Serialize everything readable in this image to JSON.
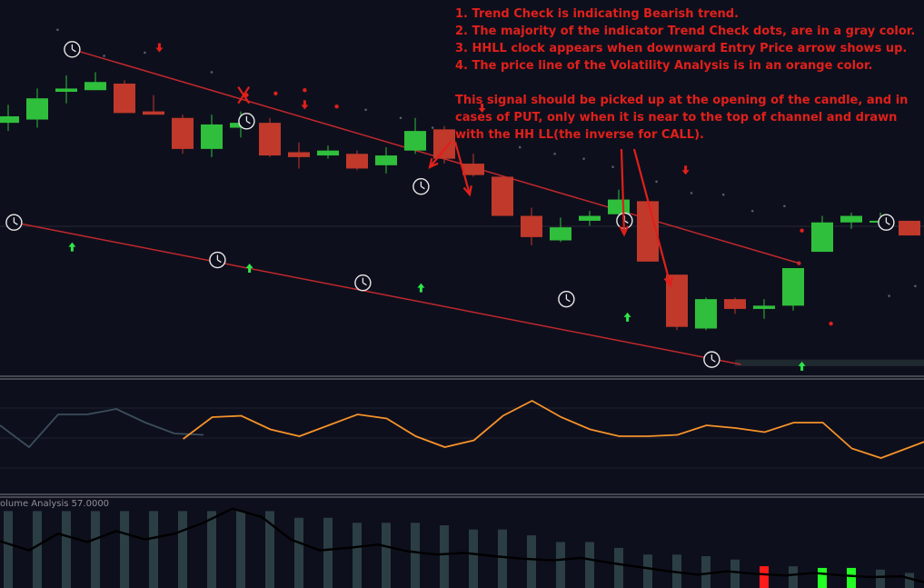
{
  "annotations": {
    "notes": [
      "1. Trend Check is indicating Bearish trend.",
      "2. The majority of the indicator Trend Check dots, are in a gray color.",
      "3. HHLL clock appears when downward Entry Price arrow shows up.",
      "4. The price line of the Volatility Analysis is in an orange color."
    ],
    "paragraph": [
      "This signal should be picked up at the opening of the candle, and in",
      "cases of PUT, only when it is near to the top of channel and drawn",
      "with the HH LL(the inverse for CALL)."
    ]
  },
  "volume_panel_label": "olume Analysis 57.0000",
  "colors": {
    "background": "#0e0f1c",
    "bull": "#2fbf3c",
    "bear": "#c0392b",
    "channel": "#c0282d",
    "annotation": "#e0201b",
    "volatility_line": "#f5922a",
    "volatility_line_early": "#3b4d5c",
    "volume_bar": "#2b3e44",
    "volume_line": "#000000",
    "trend_dot_gray": "#5a5d68",
    "trend_dot_red": "#e0201b",
    "arrow_up": "#2ee64a",
    "arrow_down": "#e0201b"
  },
  "chart_data": [
    {
      "type": "candlestick",
      "panel": "price",
      "candles": [
        {
          "o": 47,
          "c": 51,
          "h": 58,
          "l": 42
        },
        {
          "o": 49,
          "c": 62,
          "h": 68,
          "l": 44
        },
        {
          "o": 66,
          "c": 68,
          "h": 76,
          "l": 59
        },
        {
          "o": 67,
          "c": 72,
          "h": 78,
          "l": 67
        },
        {
          "o": 71,
          "c": 53,
          "h": 73,
          "l": 53
        },
        {
          "o": 54,
          "c": 52,
          "h": 64,
          "l": 52
        },
        {
          "o": 50,
          "c": 31,
          "h": 52,
          "l": 28
        },
        {
          "o": 31,
          "c": 46,
          "h": 52,
          "l": 26
        },
        {
          "o": 44,
          "c": 47,
          "h": 54,
          "l": 38
        },
        {
          "o": 47,
          "c": 27,
          "h": 50,
          "l": 26
        },
        {
          "o": 29,
          "c": 26,
          "h": 35,
          "l": 19
        },
        {
          "o": 27,
          "c": 30,
          "h": 33,
          "l": 25
        },
        {
          "o": 28,
          "c": 19,
          "h": 30,
          "l": 18
        },
        {
          "o": 21,
          "c": 27,
          "h": 32,
          "l": 16
        },
        {
          "o": 30,
          "c": 42,
          "h": 50,
          "l": 28
        },
        {
          "o": 43,
          "c": 25,
          "h": 45,
          "l": 22
        },
        {
          "o": 22,
          "c": 15,
          "h": 28,
          "l": 14
        },
        {
          "o": 14,
          "c": -10,
          "h": 14,
          "l": -10
        },
        {
          "o": -10,
          "c": -23,
          "h": -5,
          "l": -28
        },
        {
          "o": -25,
          "c": -17,
          "h": -11,
          "l": -26
        },
        {
          "o": -13,
          "c": -10,
          "h": -7,
          "l": -16
        },
        {
          "o": -9,
          "c": 0,
          "h": 6,
          "l": -10
        },
        {
          "o": -1,
          "c": -38,
          "h": 0,
          "l": -38
        },
        {
          "o": -46,
          "c": -78,
          "h": -46,
          "l": -80
        },
        {
          "o": -79,
          "c": -61,
          "h": -60,
          "l": -80
        },
        {
          "o": -61,
          "c": -67,
          "h": -60,
          "l": -70
        },
        {
          "o": -67,
          "c": -65,
          "h": -61,
          "l": -73
        },
        {
          "o": -65,
          "c": -42,
          "h": -42,
          "l": -68
        },
        {
          "o": -32,
          "c": -14,
          "h": -10,
          "l": -32
        },
        {
          "o": -14,
          "c": -10,
          "h": -8,
          "l": -18
        },
        {
          "o": -13,
          "c": -13,
          "h": -8,
          "l": -16
        },
        {
          "o": -13,
          "c": -22,
          "h": -13,
          "l": -22
        }
      ],
      "trend_check_dots": [
        {
          "i": 1.7,
          "v": 104,
          "c": "gray"
        },
        {
          "i": 3.3,
          "v": 88,
          "c": "gray"
        },
        {
          "i": 4.7,
          "v": 90,
          "c": "gray"
        },
        {
          "i": 7.0,
          "v": 78,
          "c": "gray"
        },
        {
          "i": 8.2,
          "v": 64,
          "c": "red"
        },
        {
          "i": 9.2,
          "v": 65,
          "c": "red"
        },
        {
          "i": 10.2,
          "v": 67,
          "c": "red"
        },
        {
          "i": 11.3,
          "v": 57,
          "c": "red"
        },
        {
          "i": 12.3,
          "v": 55,
          "c": "gray"
        },
        {
          "i": 13.5,
          "v": 50,
          "c": "gray"
        },
        {
          "i": 14.6,
          "v": 44,
          "c": "gray"
        },
        {
          "i": 17.6,
          "v": 32,
          "c": "gray"
        },
        {
          "i": 18.8,
          "v": 28,
          "c": "gray"
        },
        {
          "i": 19.8,
          "v": 25,
          "c": "gray"
        },
        {
          "i": 20.8,
          "v": 20,
          "c": "gray"
        },
        {
          "i": 22.3,
          "v": 11,
          "c": "gray"
        },
        {
          "i": 23.5,
          "v": 4,
          "c": "gray"
        },
        {
          "i": 24.6,
          "v": 3,
          "c": "gray"
        },
        {
          "i": 25.6,
          "v": -7,
          "c": "gray"
        },
        {
          "i": 26.7,
          "v": -4,
          "c": "gray"
        },
        {
          "i": 27.3,
          "v": -19,
          "c": "red"
        },
        {
          "i": 28.3,
          "v": -76,
          "c": "red"
        },
        {
          "i": 30.3,
          "v": -59,
          "c": "gray"
        },
        {
          "i": 31.2,
          "v": -53,
          "c": "gray"
        }
      ],
      "arrows_up": [
        {
          "i": 2.2,
          "v": -29
        },
        {
          "i": 8.3,
          "v": -42
        },
        {
          "i": 14.2,
          "v": -54
        },
        {
          "i": 21.3,
          "v": -72
        },
        {
          "i": 27.3,
          "v": -102
        }
      ],
      "arrows_down": [
        {
          "i": 5.2,
          "v": 93
        },
        {
          "i": 10.2,
          "v": 58
        },
        {
          "i": 16.3,
          "v": 56
        },
        {
          "i": 23.3,
          "v": 18
        }
      ],
      "hhll_clocks": [
        {
          "i": 0.2,
          "v": -14
        },
        {
          "i": 2.2,
          "v": 92
        },
        {
          "i": 7.2,
          "v": -37
        },
        {
          "i": 8.2,
          "v": 48
        },
        {
          "i": 12.2,
          "v": -51
        },
        {
          "i": 14.2,
          "v": 8
        },
        {
          "i": 19.2,
          "v": -61
        },
        {
          "i": 21.2,
          "v": -13
        },
        {
          "i": 24.2,
          "v": -98
        },
        {
          "i": 30.2,
          "v": -14
        }
      ],
      "channel_upper": [
        [
          2.2,
          92
        ],
        [
          27.2,
          -39
        ]
      ],
      "channel_lower": [
        [
          0.2,
          -14
        ],
        [
          25.2,
          -101
        ]
      ],
      "support_band": [
        -98,
        -102
      ],
      "ylim": [
        -106,
        120
      ]
    },
    {
      "type": "line",
      "panel": "volatility",
      "series": [
        {
          "color": "early",
          "values": [
            48,
            32,
            56,
            56,
            60,
            50,
            42,
            41
          ]
        },
        {
          "color": "orange",
          "values": [
            38,
            54,
            55,
            45,
            40,
            48,
            56,
            53,
            40,
            32,
            37,
            55,
            66,
            54,
            45,
            40,
            40,
            41,
            48,
            46,
            43,
            50,
            50,
            31,
            24,
            32,
            40,
            37,
            60,
            70,
            68,
            64,
            55
          ]
        }
      ],
      "ylim": [
        0,
        80
      ]
    },
    {
      "type": "bar",
      "panel": "volume",
      "values": [
        92,
        92,
        92,
        92,
        92,
        92,
        92,
        92,
        92,
        92,
        84,
        84,
        78,
        78,
        78,
        75,
        70,
        70,
        63,
        55,
        55,
        48,
        40,
        40,
        38,
        34,
        26,
        26,
        24,
        24,
        22,
        18,
        18
      ],
      "bar_colors": {
        "26": "red",
        "28": "green",
        "29": "green"
      },
      "line": [
        56,
        45,
        65,
        55,
        68,
        58,
        65,
        78,
        95,
        85,
        58,
        45,
        48,
        52,
        44,
        40,
        42,
        38,
        35,
        33,
        36,
        30,
        25,
        20,
        16,
        20,
        17,
        15,
        18,
        15,
        13,
        14,
        5
      ],
      "ylim": [
        0,
        100
      ]
    }
  ]
}
